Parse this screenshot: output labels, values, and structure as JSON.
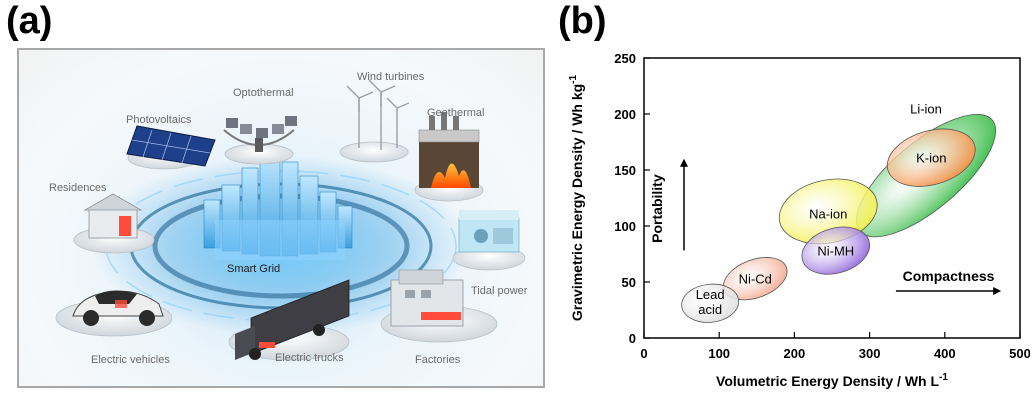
{
  "panel_a": {
    "letter": "(a)",
    "center_label": "Smart Grid",
    "nodes": [
      {
        "label": "Photovoltaics"
      },
      {
        "label": "Optothermal"
      },
      {
        "label": "Wind turbines"
      },
      {
        "label": "Geothermal"
      },
      {
        "label": "Residences"
      },
      {
        "label": "Tidal power"
      },
      {
        "label": "Electric vehicles"
      },
      {
        "label": "Electric trucks"
      },
      {
        "label": "Factories"
      }
    ]
  },
  "panel_b": {
    "letter": "(b)",
    "chart_data": {
      "type": "scatter",
      "xlabel": "Volumetric Energy Density / Wh L",
      "xlabel_sup": "-1",
      "ylabel": "Gravimetric Energy Density / Wh kg",
      "ylabel_sup": "-1",
      "xlim": [
        0,
        500
      ],
      "ylim": [
        0,
        250
      ],
      "xticks": [
        0,
        100,
        200,
        300,
        400,
        500
      ],
      "yticks": [
        0,
        50,
        100,
        150,
        200,
        250
      ],
      "regions": [
        {
          "label": "Li-ion",
          "label2": "",
          "cx": 375,
          "cy": 145,
          "rx": 115,
          "ry": 30,
          "angle": 40,
          "label_x": 375,
          "label_y": 205,
          "color": "#2db83d"
        },
        {
          "label": "Na-ion",
          "label2": "",
          "cx": 245,
          "cy": 113,
          "rx": 66,
          "ry": 28,
          "angle": 12,
          "label_x": 245,
          "label_y": 111,
          "color": "#f2ef3a"
        },
        {
          "label": "K-ion",
          "label2": "",
          "cx": 382,
          "cy": 161,
          "rx": 60,
          "ry": 24,
          "angle": 16,
          "label_x": 382,
          "label_y": 161,
          "color": "#f7883a"
        },
        {
          "label": "Ni-MH",
          "label2": "",
          "cx": 255,
          "cy": 78,
          "rx": 46,
          "ry": 20,
          "angle": 16,
          "label_x": 255,
          "label_y": 78,
          "color": "#8b5fd8"
        },
        {
          "label": "Ni-Cd",
          "label2": "",
          "cx": 148,
          "cy": 53,
          "rx": 44,
          "ry": 17,
          "angle": 20,
          "label_x": 148,
          "label_y": 53,
          "color": "#f2a58a"
        },
        {
          "label": "Lead",
          "label2": "acid",
          "cx": 88,
          "cy": 31,
          "rx": 38,
          "ry": 17,
          "angle": 6,
          "label_x": 88,
          "label_y": 32,
          "color": "#dcdcdc"
        }
      ],
      "annotations": [
        {
          "text": "Portability",
          "arrow": "up"
        },
        {
          "text": "Compactness",
          "arrow": "right"
        }
      ]
    }
  }
}
